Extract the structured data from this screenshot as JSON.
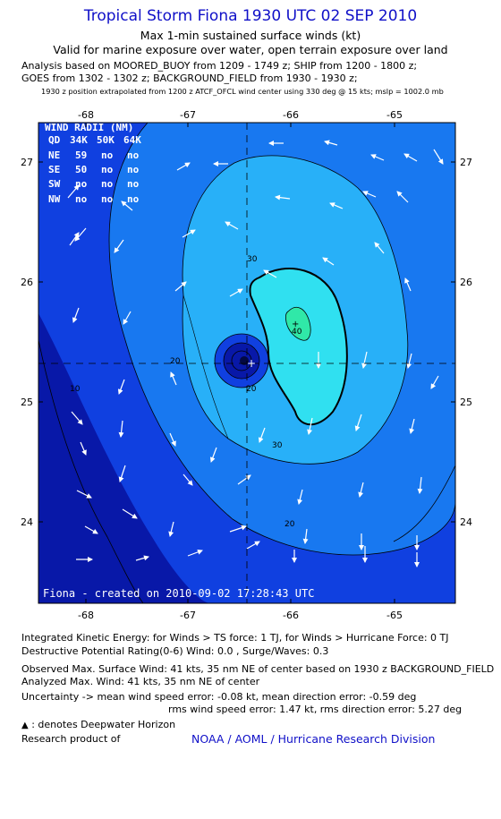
{
  "header": {
    "title": "Tropical Storm Fiona 1930 UTC 02 SEP 2010",
    "subtitle1": "Max 1-min sustained surface winds (kt)",
    "subtitle2": "Valid for marine exposure over water, open terrain exposure over land",
    "analysis_line1": "Analysis based on MOORED_BUOY from 1209 - 1749 z; SHIP from 1200 - 1800 z;",
    "analysis_line2": "GOES from 1302 - 1302 z; BACKGROUND_FIELD from 1930 - 1930 z;",
    "position_line": "1930 z position extrapolated from 1200 z ATCF_OFCL wind center using 330 deg @ 15 kts; mslp = 1002.0 mb"
  },
  "map": {
    "lon_ticks": [
      "-68",
      "-67",
      "-66",
      "-65"
    ],
    "lat_ticks": [
      "27",
      "26",
      "25",
      "24"
    ],
    "center": {
      "lon": -66.45,
      "lat": 25.32
    },
    "contour_labels": [
      "10",
      "20",
      "20",
      "20",
      "30",
      "30",
      "40"
    ],
    "credit": "Fiona - created on 2010-09-02 17:28:43 UTC",
    "colors": {
      "c0": "#0818a8",
      "c10": "#1040e0",
      "c20": "#1878f0",
      "c30": "#28b0f8",
      "c40": "#30e0f0",
      "c50": "#30e8a8"
    },
    "wind_radii": {
      "title": "WIND RADII (NM)",
      "header": [
        "QD",
        "34K",
        "50K",
        "64K"
      ],
      "rows": [
        [
          "NE",
          "59",
          "no",
          "no"
        ],
        [
          "SE",
          "50",
          "no",
          "no"
        ],
        [
          "SW",
          "no",
          "no",
          "no"
        ],
        [
          "NW",
          "no",
          "no",
          "no"
        ]
      ]
    }
  },
  "footer": {
    "ike": "Integrated Kinetic Energy:  for Winds > TS force: 1 TJ,  for Winds > Hurricane Force: 0 TJ",
    "dpr": "Destructive Potential Rating(0-6)   Wind: 0.0 , Surge/Waves: 0.3",
    "observed": "Observed Max. Surface Wind: 41 kts, 35 nm NE of center based on 1930 z BACKGROUND_FIELD",
    "analyzed": "Analyzed Max. Wind: 41 kts, 35 nm NE of center",
    "uncertainty1": "Uncertainty -> mean wind speed error:  -0.08 kt,   mean direction error:  -0.59 deg",
    "uncertainty2": "rms wind speed error: 1.47 kt,   rms direction error: 5.27 deg",
    "legend": ": denotes Deepwater Horizon",
    "research": "Research product of",
    "org": "NOAA / AOML / Hurricane Research Division"
  }
}
